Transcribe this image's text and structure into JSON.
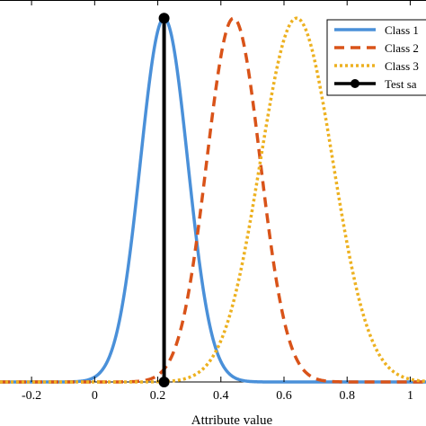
{
  "chart_data": {
    "type": "line",
    "title": "",
    "xlabel": "Attribute value",
    "ylabel": "",
    "xlim": [
      -0.3,
      1.05
    ],
    "ylim": [
      0,
      1.05
    ],
    "x_ticks": [
      "-0.2",
      "0",
      "0.2",
      "0.4",
      "0.6",
      "0.8",
      "1"
    ],
    "x_tick_values": [
      -0.2,
      0,
      0.2,
      0.4,
      0.6,
      0.8,
      1.0
    ],
    "grid": false,
    "legend": {
      "position": "top-right",
      "entries": [
        "Class 1",
        "Class 2",
        "Class 3",
        "Test sa"
      ]
    },
    "series": [
      {
        "name": "Class 1",
        "distribution": "gaussian",
        "mean": 0.22,
        "std": 0.075,
        "peak": 1.0,
        "color": "#4A90D9",
        "style": "solid"
      },
      {
        "name": "Class 2",
        "distribution": "gaussian",
        "mean": 0.44,
        "std": 0.085,
        "peak": 1.0,
        "color": "#D95319",
        "style": "dashed"
      },
      {
        "name": "Class 3",
        "distribution": "gaussian",
        "mean": 0.64,
        "std": 0.115,
        "peak": 1.0,
        "color": "#EDB120",
        "style": "dotted"
      },
      {
        "name": "Test sa",
        "x": [
          0.22,
          0.22
        ],
        "y": [
          0.0,
          1.0
        ],
        "color": "#000000",
        "style": "solid-markers"
      }
    ]
  }
}
